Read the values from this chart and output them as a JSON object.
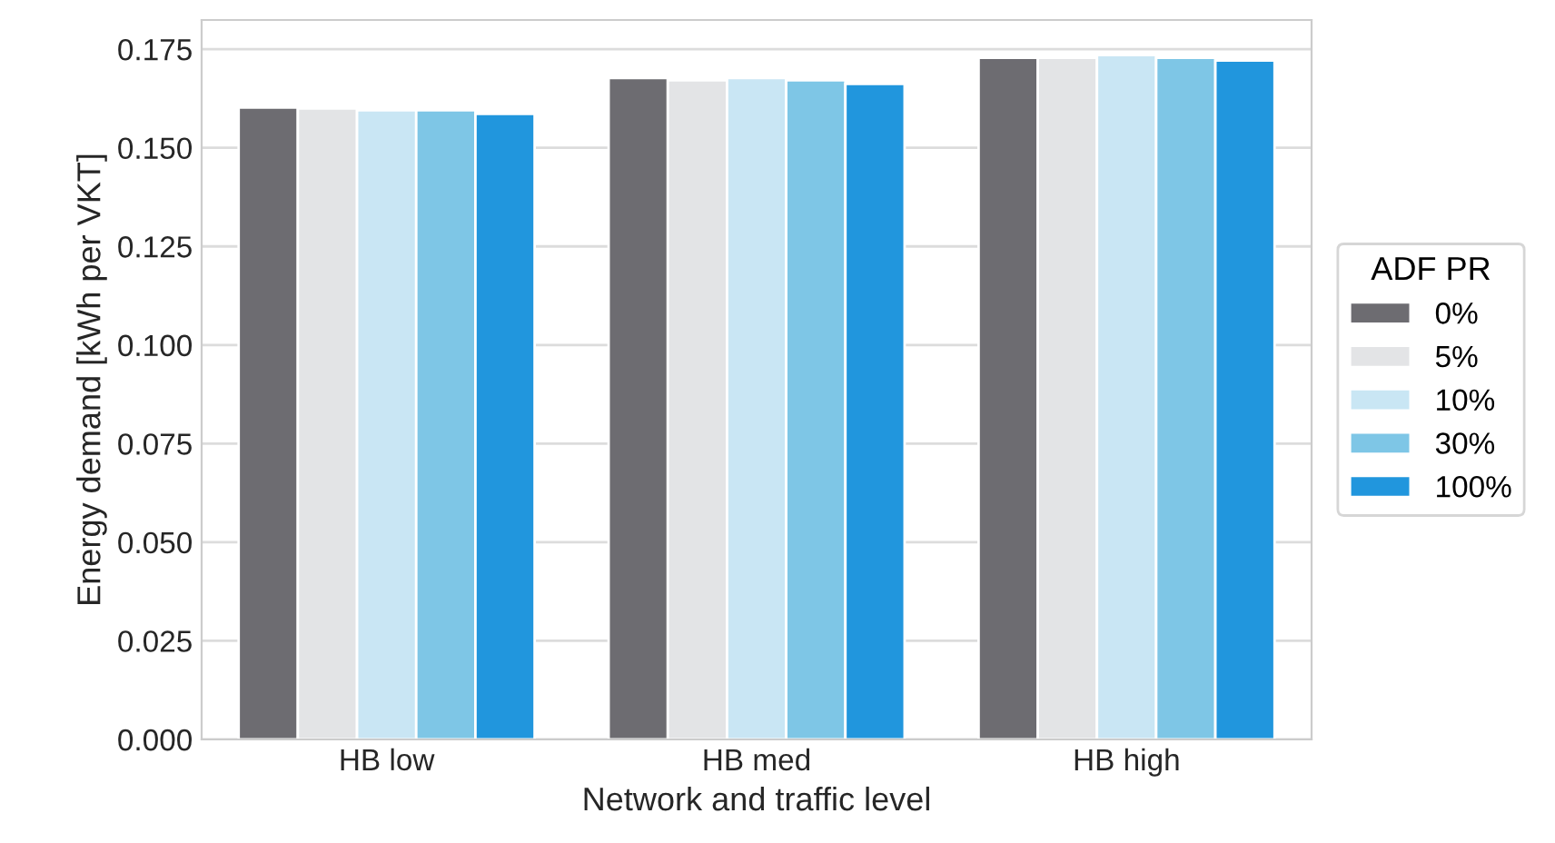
{
  "chart_data": {
    "type": "bar",
    "xlabel": "Network and traffic level",
    "ylabel": "Energy demand [kWh per VKT]",
    "legend_title": "ADF PR",
    "categories": [
      "HB low",
      "HB med",
      "HB high"
    ],
    "series": [
      {
        "name": "0%",
        "color": "#6d6c71",
        "values": [
          0.1602,
          0.1677,
          0.1728
        ]
      },
      {
        "name": "5%",
        "color": "#e3e4e6",
        "values": [
          0.16,
          0.1671,
          0.1728
        ]
      },
      {
        "name": "10%",
        "color": "#c9e6f4",
        "values": [
          0.1595,
          0.1677,
          0.1735
        ]
      },
      {
        "name": "30%",
        "color": "#7ec6e6",
        "values": [
          0.1595,
          0.1671,
          0.1728
        ]
      },
      {
        "name": "100%",
        "color": "#2196dd",
        "values": [
          0.1586,
          0.1662,
          0.1721
        ]
      }
    ],
    "ylim": [
      0,
      0.1824
    ],
    "yticks": [
      {
        "value": 0,
        "label": "0.000"
      },
      {
        "value": 0.025,
        "label": "0.025"
      },
      {
        "value": 0.05,
        "label": "0.050"
      },
      {
        "value": 0.075,
        "label": "0.075"
      },
      {
        "value": 0.1,
        "label": "0.100"
      },
      {
        "value": 0.125,
        "label": "0.125"
      },
      {
        "value": 0.15,
        "label": "0.150"
      },
      {
        "value": 0.175,
        "label": "0.175"
      }
    ],
    "grid": "y",
    "legend": "right"
  }
}
